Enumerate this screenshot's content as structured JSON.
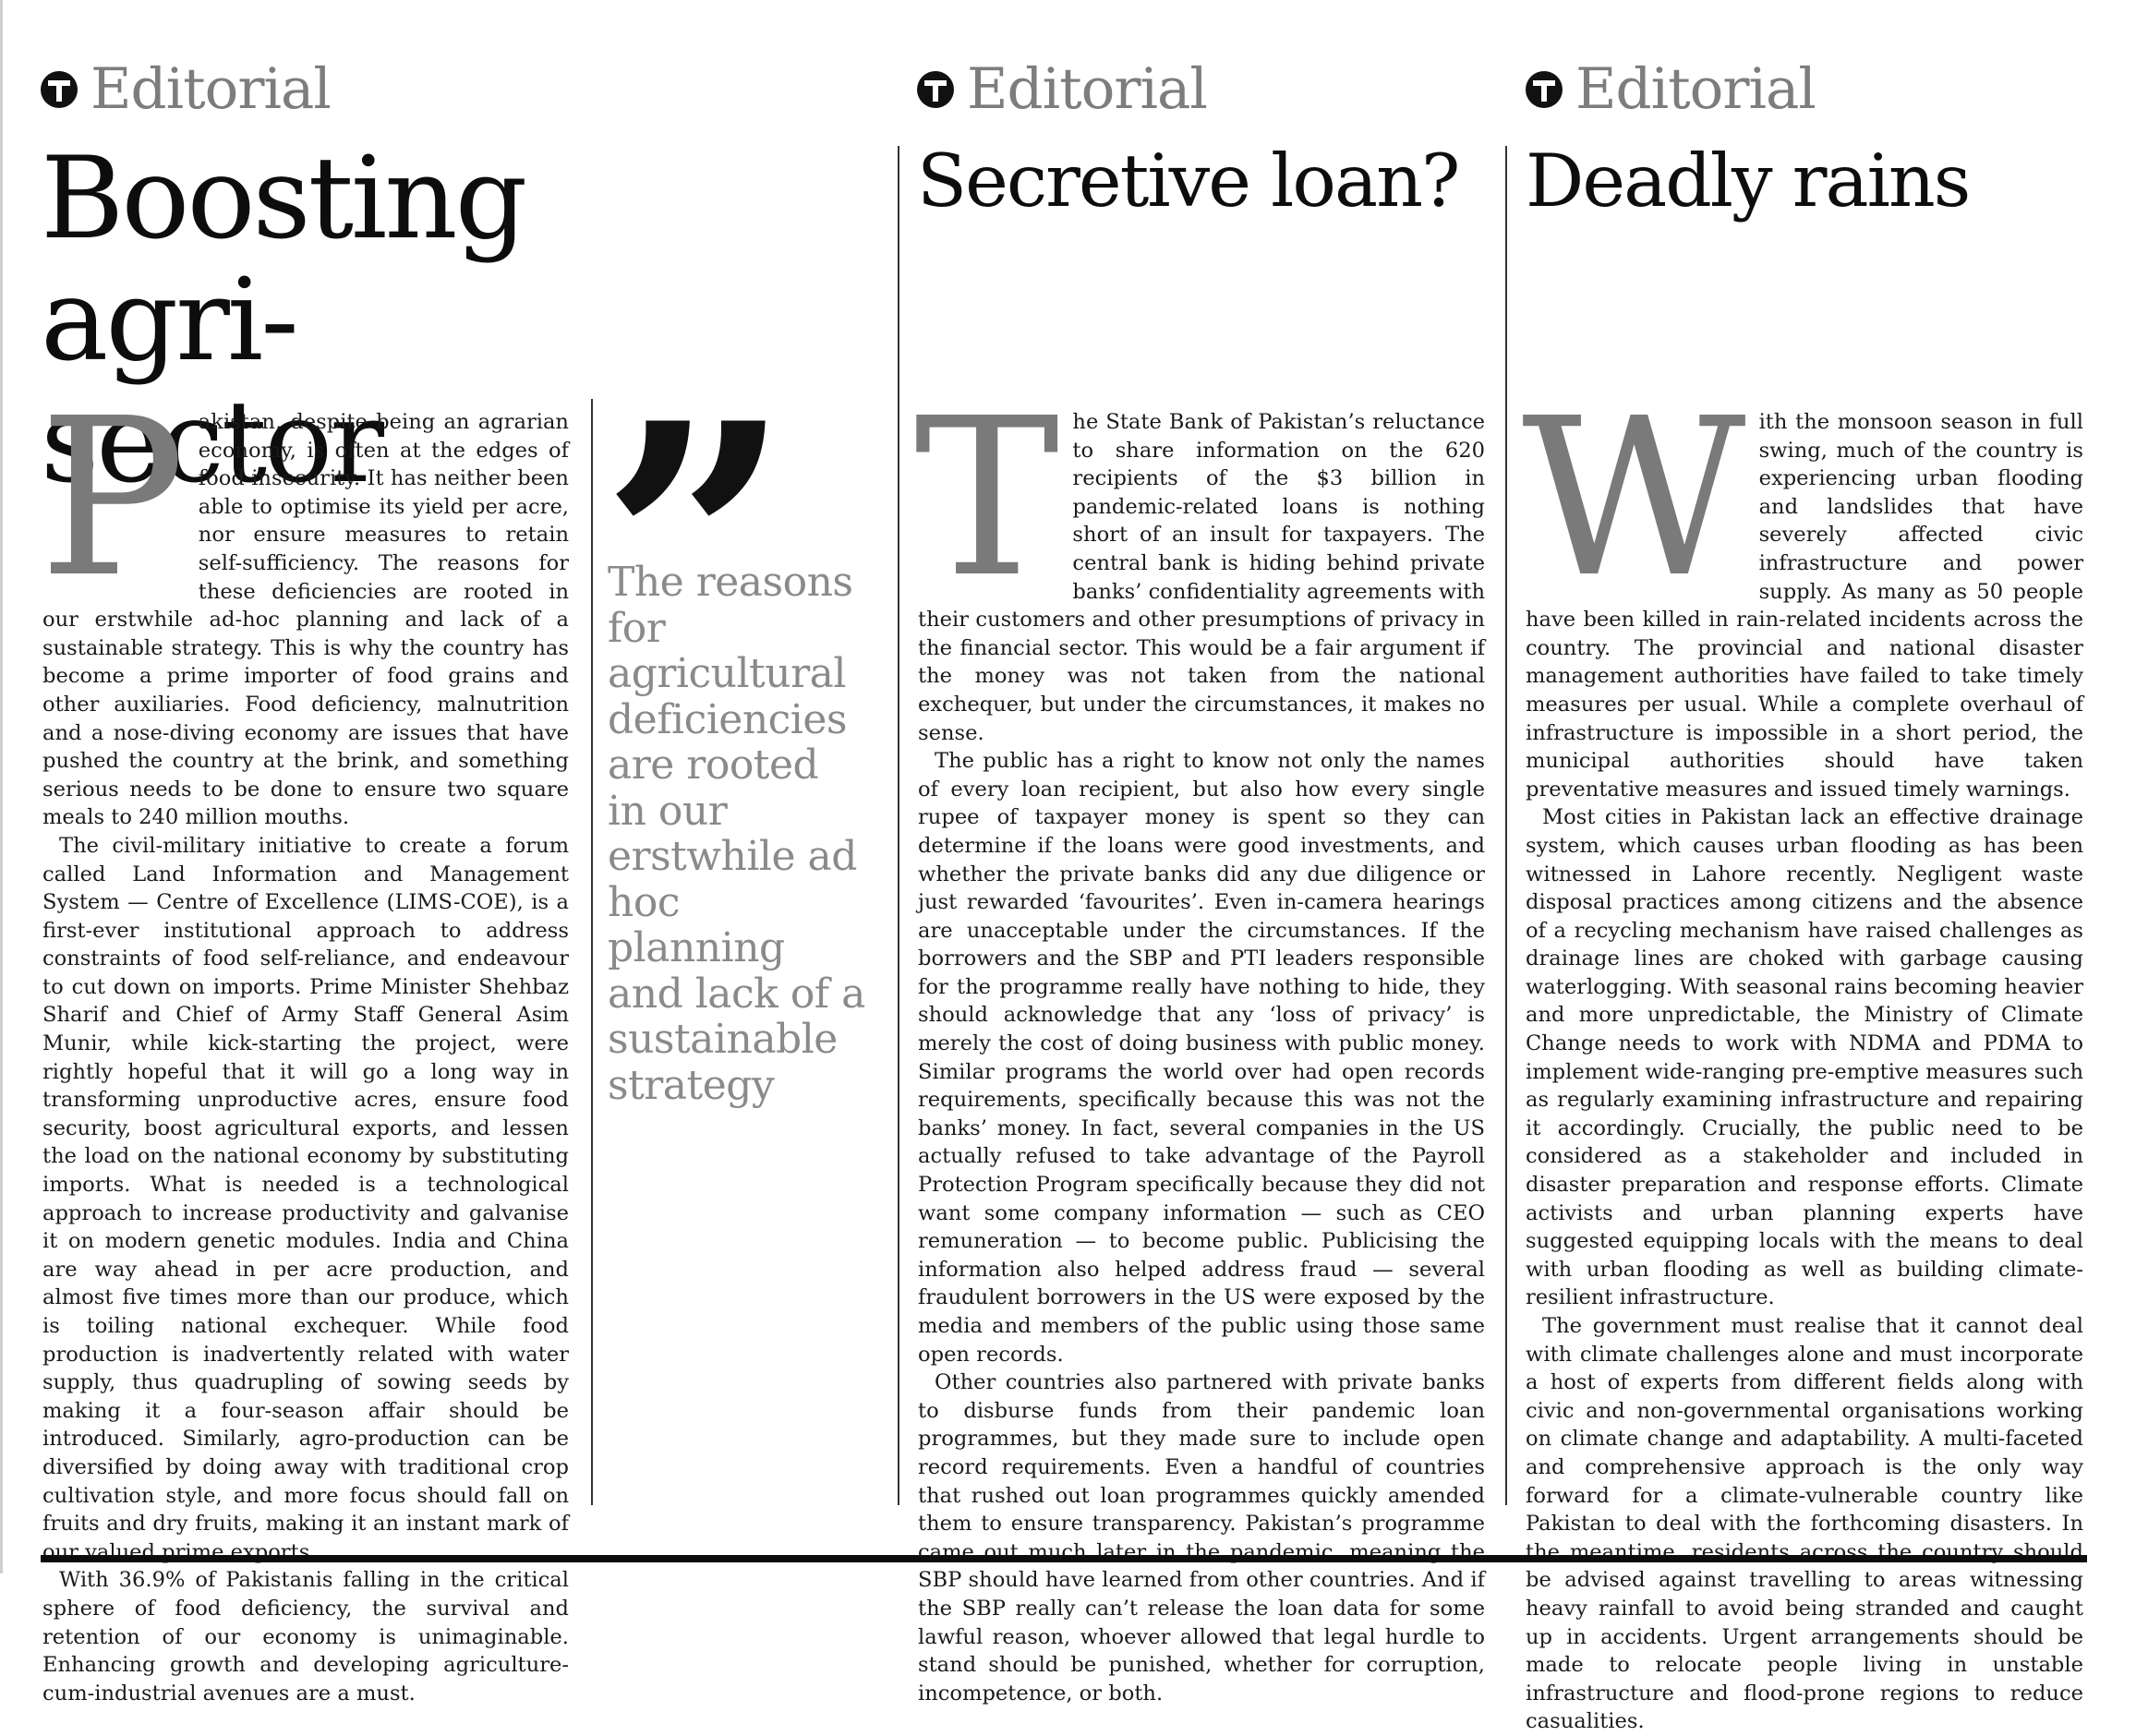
{
  "masthead_label": "Editorial",
  "articles": [
    {
      "headline": "Boosting agri-sector",
      "dropcap": "P",
      "paragraphs": [
        "akistan, despite being an agrarian economy, is often at the edges of food insecurity. It has neither been able to optimise its yield per acre, nor ensure measures to retain self-sufficiency. The reasons for these deficiencies are rooted in our erstwhile ad-hoc planning and lack of a sustainable strategy. This is why the country has become a prime importer of food grains and other auxiliaries. Food deficiency, malnutrition and a nose-diving economy are issues that have pushed the country at the brink, and something serious needs to be done to ensure two square meals to 240 million mouths.",
        "The civil-military initiative to create a forum called Land Information and Management System — Centre of Excellence (LIMS-COE), is a first-ever institutional approach to address constraints of food self-reliance, and endeavour to cut down on imports. Prime Minister Shehbaz Sharif and Chief of Army Staff General Asim Munir, while kick-starting the project, were rightly hopeful that it will go a long way in transforming unproductive acres, ensure food security, boost agricultural exports, and lessen the load on the national economy by substituting imports. What is needed is a technological approach to increase productivity and galvanise it on modern genetic modules. India and China are way ahead in per acre production, and almost five times more than our produce, which is toiling national exchequer. While food production is inadvertently related with water supply, thus quadrupling of sowing seeds by making it a four-season affair should be introduced. Similarly, agro-production can be diversified by doing away with traditional crop cultivation style, and more focus should fall on fruits and dry fruits, making it an instant mark of our valued prime exports.",
        "With 36.9% of Pakistanis falling in the critical sphere of food deficiency, the survival and retention of our economy is unimaginable. Enhancing growth and developing agriculture-cum-industrial avenues are a must."
      ]
    },
    {
      "headline": "Secretive loan?",
      "dropcap": "T",
      "paragraphs": [
        "he State Bank of Pakistan’s reluctance to share information on the 620 recipients of the $3 billion in pandemic-related loans is nothing short of an insult for taxpayers. The central bank is hiding behind private banks’ confidentiality agreements with their customers and other presumptions of privacy in the financial sector. This would be a fair argument if the money was not taken from the national exchequer, but under the circumstances, it makes no sense.",
        "The public has a right to know not only the names of every loan recipient, but also how every single rupee of taxpayer money is spent so they can determine if the loans were good investments, and whether the private banks did any due diligence or just rewarded ‘favourites’. Even in-camera hearings are unacceptable under the circumstances. If the borrowers and the SBP and PTI leaders responsible for the programme really have nothing to hide, they should acknowledge that any ‘loss of privacy’ is merely the cost of doing business with public money. Similar programs the world over had open records requirements, specifically because this was not the banks’ money. In fact, several companies in the US actually refused to take advantage of the Payroll Protection Program specifically because they did not want some company information — such as CEO remuneration — to become public. Publicising the information also helped address fraud — several fraudulent borrowers in the US were exposed by the media and members of the public using those same open records.",
        "Other countries also partnered with private banks to disburse funds from their pandemic loan programmes, but they made sure to include open record requirements. Even a handful of countries that rushed out loan programmes quickly amended them to ensure transparency. Pakistan’s programme came out much later in the pandemic, meaning the SBP should have learned from other countries. And if the SBP really can’t release the loan data for some lawful reason, whoever allowed that legal hurdle to stand should be punished, whether for corruption, incompetence, or both."
      ]
    },
    {
      "headline": "Deadly rains",
      "dropcap": "W",
      "paragraphs": [
        "ith the monsoon season in full swing, much of the country is experiencing urban flooding and landslides that have severely affected civic infrastructure and power supply. As many as 50 people have been killed in rain-related incidents across the country. The provincial and national disaster management authorities have failed to take timely measures per usual. While a complete overhaul of infrastructure is impossible in a short period, the municipal authorities should have taken preventative measures and issued timely warnings.",
        "Most cities in Pakistan lack an effective drainage system, which causes urban flooding as has been witnessed in Lahore recently. Negligent waste disposal practices among citizens and the absence of a recycling mechanism have raised challenges as drainage lines are choked with garbage causing waterlogging. With seasonal rains becoming heavier and more unpredictable, the Ministry of Climate Change needs to work with NDMA and PDMA to implement wide-ranging pre-emptive measures such as regularly examining infrastructure and repairing it accordingly. Crucially, the public need to be considered as a stakeholder and included in disaster preparation and response efforts. Climate activists and urban planning experts have suggested equipping locals with the means to deal with urban flooding as well as building climate-resilient infrastructure.",
        "The government must realise that it cannot deal with climate challenges alone and must incorporate a host of experts from different fields along with civic and non-governmental organisations working on climate change and adaptability. A multi-faceted and comprehensive approach is the only way forward for a climate-vulnerable country like Pakistan to deal with the forthcoming disasters. In the meantime, residents across the country should be advised against travelling to areas witnessing heavy rainfall to avoid being stranded and caught up in accidents. Urgent arrangements should be made to relocate people living in unstable infrastructure and flood-prone regions to reduce casualities."
      ]
    }
  ],
  "pullquote": {
    "mark": "”",
    "text": "The reasons for agricultural deficiencies are rooted in our erstwhile ad hoc planning and lack of a sustainable strategy"
  }
}
